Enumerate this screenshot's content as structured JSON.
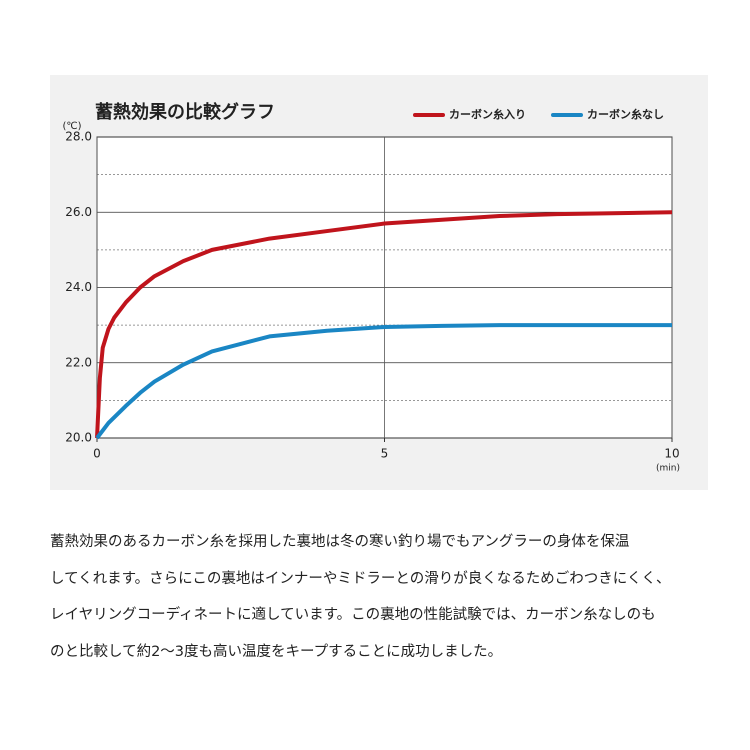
{
  "chart_data": {
    "type": "line",
    "title": "蓄熱効果の比較グラフ",
    "ylabel": "(℃)",
    "xlabel": "(min)",
    "x": [
      0,
      0.05,
      0.1,
      0.2,
      0.3,
      0.5,
      0.75,
      1,
      1.5,
      2,
      3,
      4,
      5,
      6,
      7,
      8,
      10
    ],
    "series": [
      {
        "name": "カーボン糸入り",
        "color": "#c0141c",
        "values": [
          20,
          21.6,
          22.4,
          22.9,
          23.2,
          23.6,
          24.0,
          24.3,
          24.7,
          25.0,
          25.3,
          25.5,
          25.7,
          25.8,
          25.9,
          25.95,
          26.0
        ]
      },
      {
        "name": "カーボン糸なし",
        "color": "#1a86c4",
        "values": [
          20,
          20.1,
          20.2,
          20.4,
          20.55,
          20.85,
          21.2,
          21.5,
          21.95,
          22.3,
          22.7,
          22.85,
          22.95,
          22.98,
          23.0,
          23.0,
          23.0
        ]
      }
    ],
    "xlim": [
      0,
      10
    ],
    "xticks": [
      0,
      5,
      10
    ],
    "ylim": [
      20,
      28
    ],
    "yticks": [
      {
        "value": 20,
        "label": "20.0"
      },
      {
        "value": 22,
        "label": "22.0"
      },
      {
        "value": 24,
        "label": "24.0"
      },
      {
        "value": 26,
        "label": "26.0"
      },
      {
        "value": 28,
        "label": "28.0"
      }
    ],
    "yminor": [
      21,
      23,
      25,
      27
    ],
    "grid": true,
    "legend": "top-right"
  },
  "body": {
    "lines": [
      "蓄熱効果のあるカーボン糸を採用した裏地は冬の寒い釣り場でもアングラーの身体を保温",
      "してくれます。さらにこの裏地はインナーやミドラーとの滑りが良くなるためごわつきにくく、",
      "レイヤリングコーディネートに適しています。この裏地の性能試験では、カーボン糸なしのも",
      "のと比較して約2～3度も高い温度をキープすることに成功しました。"
    ]
  }
}
